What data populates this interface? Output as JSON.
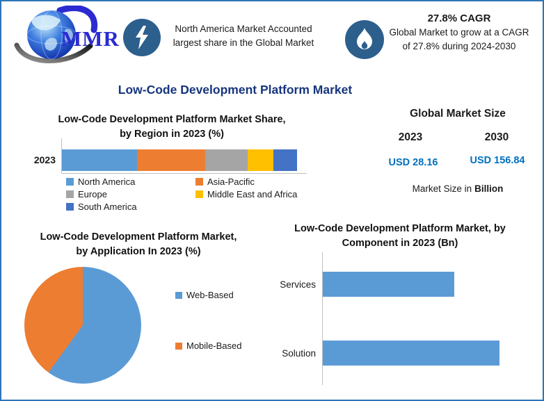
{
  "brand": {
    "logo_text": "MMR"
  },
  "header": {
    "highlight_region": {
      "icon": "lightning-icon",
      "text": "North America Market Accounted largest share in the Global Market"
    },
    "highlight_cagr": {
      "icon": "flame-icon",
      "title": "27.8% CAGR",
      "text": "Global Market to grow at a CAGR of 27.8% during 2024-2030"
    }
  },
  "page_title": "Low-Code Development Platform Market",
  "market_size_panel": {
    "title": "Global Market Size",
    "columns": [
      {
        "year": "2023",
        "value": "USD 28.16"
      },
      {
        "year": "2030",
        "value": "USD 156.84"
      }
    ],
    "note_prefix": "Market Size in",
    "note_bold": "Billion",
    "value_color": "#0070C0"
  },
  "chart_data": [
    {
      "type": "bar",
      "subtype": "stacked-horizontal",
      "title": "Low-Code Development Platform Market Share, by Region in 2023 (%)",
      "categories": [
        "2023"
      ],
      "series": [
        {
          "name": "North America",
          "values": [
            32
          ],
          "color": "#5B9BD5"
        },
        {
          "name": "Asia-Pacific",
          "values": [
            29
          ],
          "color": "#ED7D31"
        },
        {
          "name": "Europe",
          "values": [
            18
          ],
          "color": "#A5A5A5"
        },
        {
          "name": "Middle East and Africa",
          "values": [
            11
          ],
          "color": "#FFC000"
        },
        {
          "name": "South America",
          "values": [
            10
          ],
          "color": "#4472C4"
        }
      ],
      "xlim": [
        0,
        100
      ],
      "grid": false,
      "legend_position": "bottom"
    },
    {
      "type": "pie",
      "title": "Low-Code Development Platform Market, by Application In 2023 (%)",
      "labels": [
        "Web-Based",
        "Mobile-Based"
      ],
      "values": [
        60,
        40
      ],
      "colors": [
        "#5B9BD5",
        "#ED7D31"
      ],
      "start_angle_deg": 0,
      "direction": "clockwise",
      "legend_position": "right"
    },
    {
      "type": "bar",
      "subtype": "horizontal",
      "title": "Low-Code Development Platform Market, by Component in 2023 (Bn)",
      "categories": [
        "Services",
        "Solution"
      ],
      "values": [
        12,
        16.1
      ],
      "color": "#5B9BD5",
      "xlim": [
        0,
        19
      ],
      "grid": false
    }
  ]
}
